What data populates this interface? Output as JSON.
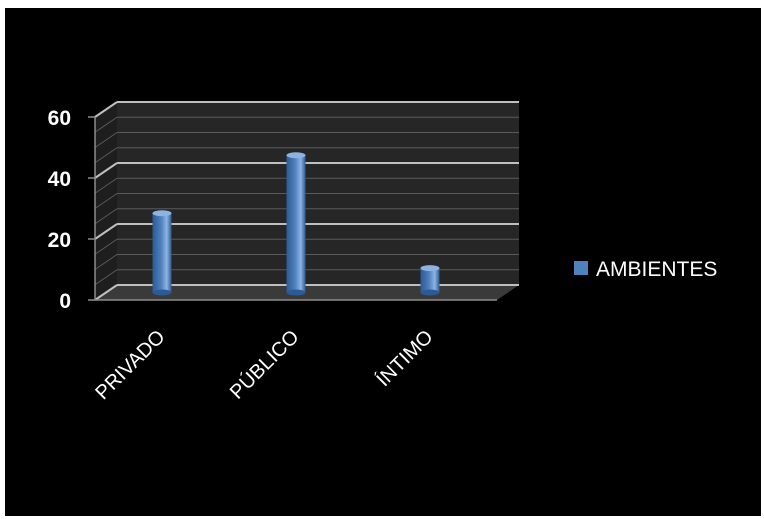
{
  "chart_data": {
    "type": "bar",
    "categories": [
      "PRIVADO",
      "PÚBLICO",
      "ÍNTIMO"
    ],
    "series": [
      {
        "name": "AMBIENTES",
        "values": [
          26,
          45,
          8
        ]
      }
    ],
    "yticks": [
      "0",
      "20",
      "40",
      "60"
    ],
    "ylim": [
      0,
      60
    ],
    "grid": true,
    "legend": "right",
    "colors": {
      "bar": "#4f81bd",
      "bar_dark": "#2c5a94",
      "bar_light": "#8db3e2",
      "background": "#000000",
      "wall": "#262626",
      "grid": "#bfbfbf",
      "text": "#ffffff"
    }
  }
}
